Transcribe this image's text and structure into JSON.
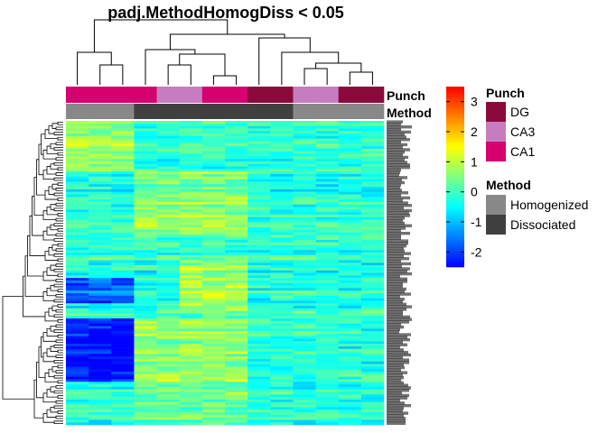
{
  "chart_data": {
    "type": "heatmap",
    "title": "padj.MethodHomogDiss < 0.05",
    "columns": 14,
    "rows": 120,
    "annotations": {
      "Punch": {
        "label": "Punch",
        "legend": [
          {
            "name": "DG",
            "color": "#8B0A3C"
          },
          {
            "name": "CA3",
            "color": "#C77CC0"
          },
          {
            "name": "CA1",
            "color": "#D6006E"
          }
        ],
        "columns": [
          "CA1",
          "CA1",
          "CA1",
          "CA1",
          "CA3",
          "CA3",
          "CA1",
          "CA1",
          "DG",
          "DG",
          "CA3",
          "CA3",
          "DG",
          "DG"
        ]
      },
      "Method": {
        "label": "Method",
        "legend": [
          {
            "name": "Homogenized",
            "color": "#888888"
          },
          {
            "name": "Dissociated",
            "color": "#404040"
          }
        ],
        "columns": [
          "Homogenized",
          "Homogenized",
          "Homogenized",
          "Dissociated",
          "Dissociated",
          "Dissociated",
          "Dissociated",
          "Dissociated",
          "Dissociated",
          "Dissociated",
          "Homogenized",
          "Homogenized",
          "Homogenized",
          "Homogenized"
        ]
      }
    },
    "colorscale": {
      "colors": [
        "#0000FF",
        "#00FFFF",
        "#FFFF00",
        "#FF0000"
      ],
      "stops": [
        -2.5,
        -0.5,
        1.5,
        3.5
      ],
      "ticks": [
        "3",
        "2",
        "1",
        "0",
        "-1",
        "-2"
      ],
      "tick_values": [
        3,
        2,
        1,
        0,
        -1,
        -2
      ],
      "range": [
        -2.5,
        3.5
      ]
    },
    "grid": false,
    "legend_position": "right"
  }
}
